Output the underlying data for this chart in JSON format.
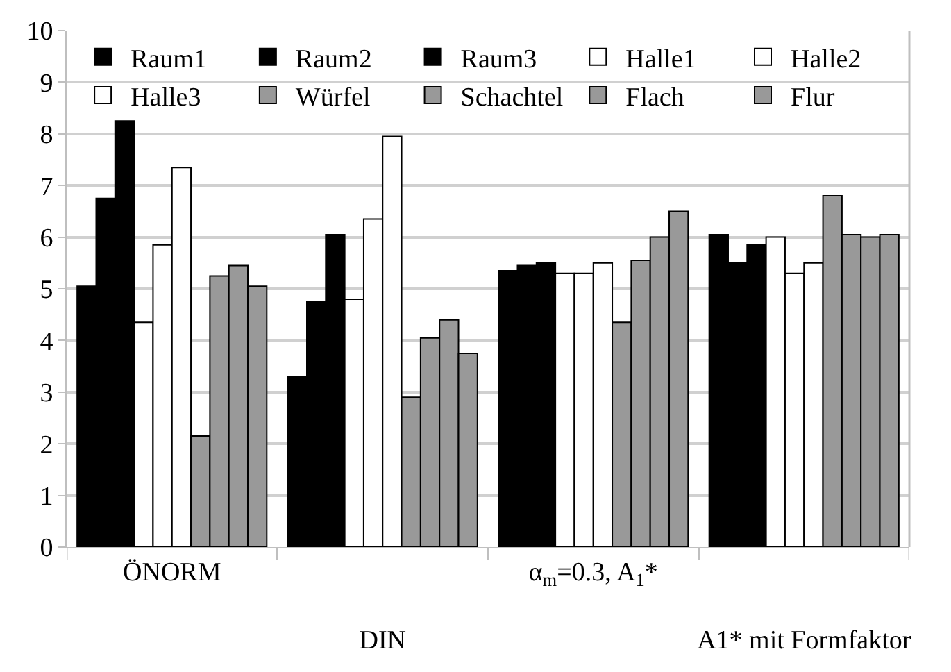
{
  "chart_data": {
    "type": "bar",
    "categories": [
      "ÖNORM",
      "DIN",
      "α$_{m}$=0.3, A$_{1}$*",
      "A1* mit Formfaktor"
    ],
    "series": [
      {
        "name": "Raum1",
        "color": "#000000",
        "values": [
          5.05,
          3.3,
          5.35,
          6.05
        ]
      },
      {
        "name": "Raum2",
        "color": "#000000",
        "values": [
          6.75,
          4.75,
          5.45,
          5.5
        ]
      },
      {
        "name": "Raum3",
        "color": "#000000",
        "values": [
          8.25,
          6.05,
          5.5,
          5.85
        ]
      },
      {
        "name": "Halle1",
        "color": "#ffffff",
        "values": [
          4.35,
          4.8,
          5.3,
          6.0
        ]
      },
      {
        "name": "Halle2",
        "color": "#ffffff",
        "values": [
          5.85,
          6.35,
          5.3,
          5.3
        ]
      },
      {
        "name": "Halle3",
        "color": "#ffffff",
        "values": [
          7.35,
          7.95,
          5.5,
          5.5
        ]
      },
      {
        "name": "Würfel",
        "color": "#999999",
        "values": [
          2.15,
          2.9,
          4.35,
          6.8
        ]
      },
      {
        "name": "Schachtel",
        "color": "#999999",
        "values": [
          5.25,
          4.05,
          5.55,
          6.05
        ]
      },
      {
        "name": "Flach",
        "color": "#999999",
        "values": [
          5.45,
          4.4,
          6.0,
          6.0
        ]
      },
      {
        "name": "Flur",
        "color": "#999999",
        "values": [
          5.05,
          3.75,
          6.5,
          6.05
        ]
      }
    ],
    "ylim": [
      0,
      10
    ],
    "yticks": [
      0,
      1,
      2,
      3,
      4,
      5,
      6,
      7,
      8,
      9,
      10
    ],
    "grid": "y",
    "legend": "top"
  }
}
